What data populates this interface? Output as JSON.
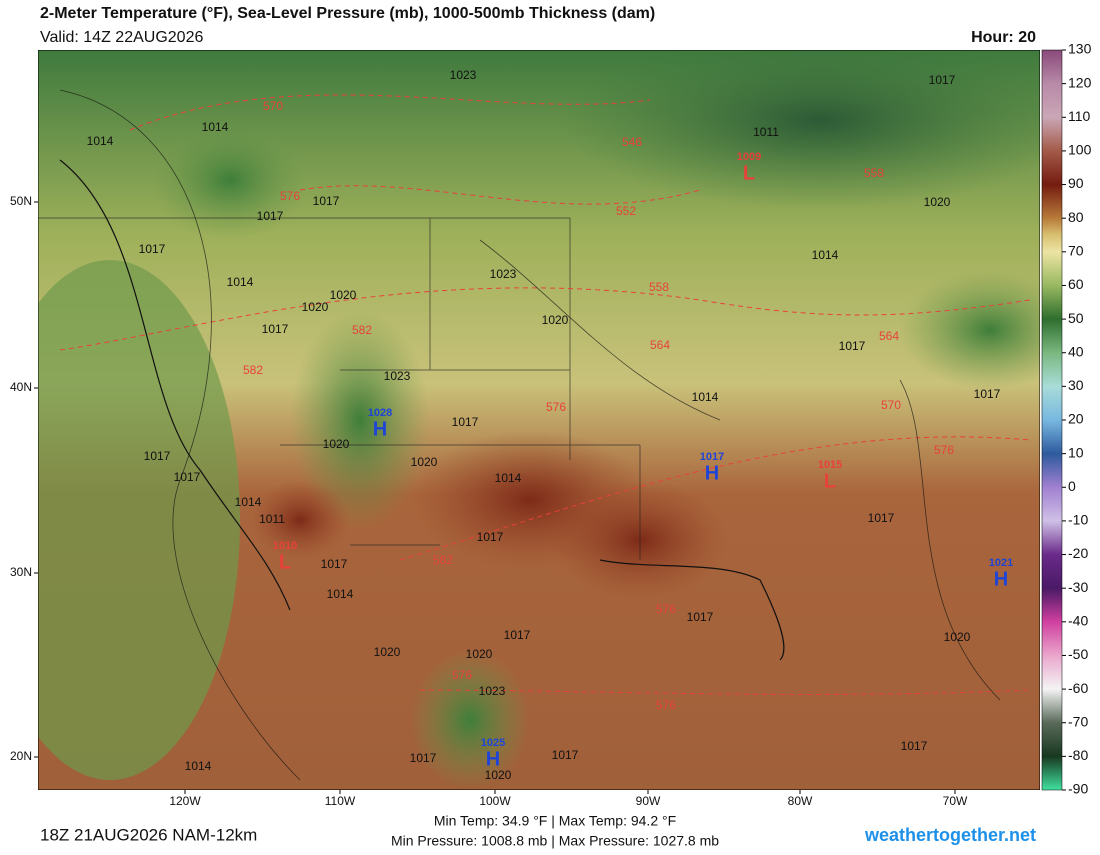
{
  "header": {
    "title": "2-Meter Temperature (°F), Sea-Level Pressure (mb), 1000-500mb Thickness (dam)",
    "valid": "Valid: 14Z 22AUG2026",
    "hour": "Hour: 20"
  },
  "colorbar": {
    "range": [
      -90,
      130
    ],
    "ticks": [
      130,
      120,
      110,
      100,
      90,
      80,
      70,
      60,
      50,
      40,
      30,
      20,
      10,
      0,
      -10,
      -20,
      -30,
      -40,
      -50,
      -60,
      -70,
      -80,
      -90
    ]
  },
  "axes": {
    "latitudes": [
      "50N",
      "40N",
      "30N",
      "20N"
    ],
    "longitudes": [
      "120W",
      "110W",
      "100W",
      "90W",
      "80W",
      "70W"
    ]
  },
  "isobar_labels": [
    1014,
    1014,
    1017,
    1017,
    1017,
    1014,
    1020,
    1020,
    1017,
    1023,
    1020,
    1023,
    1017,
    1020,
    1020,
    1017,
    1017,
    1014,
    1011,
    1014,
    1017,
    1017,
    1014,
    1014,
    1017,
    1017,
    1017,
    1017,
    1017,
    1020,
    1020,
    1023,
    1017,
    1017,
    1020,
    1014,
    1011,
    1017,
    1020,
    1014,
    1023,
    1020,
    1017
  ],
  "thickness_labels": [
    570,
    576,
    582,
    582,
    546,
    552,
    558,
    558,
    564,
    564,
    570,
    576,
    576,
    582,
    576,
    576,
    576
  ],
  "centers": [
    {
      "type": "H",
      "pressure": 1028
    },
    {
      "type": "L",
      "pressure": 1009
    },
    {
      "type": "H",
      "pressure": 1017
    },
    {
      "type": "L",
      "pressure": 1015
    },
    {
      "type": "H",
      "pressure": 1021
    },
    {
      "type": "L",
      "pressure": 1010
    },
    {
      "type": "H",
      "pressure": 1025
    }
  ],
  "footer": {
    "temps": "Min Temp:  34.9 °F | Max Temp:  94.2 °F",
    "pressures": "Min Pressure: 1008.8 mb | Max Pressure: 1027.8 mb",
    "run": "18Z 21AUG2026 NAM-12km",
    "site": "weathertogether.net"
  }
}
